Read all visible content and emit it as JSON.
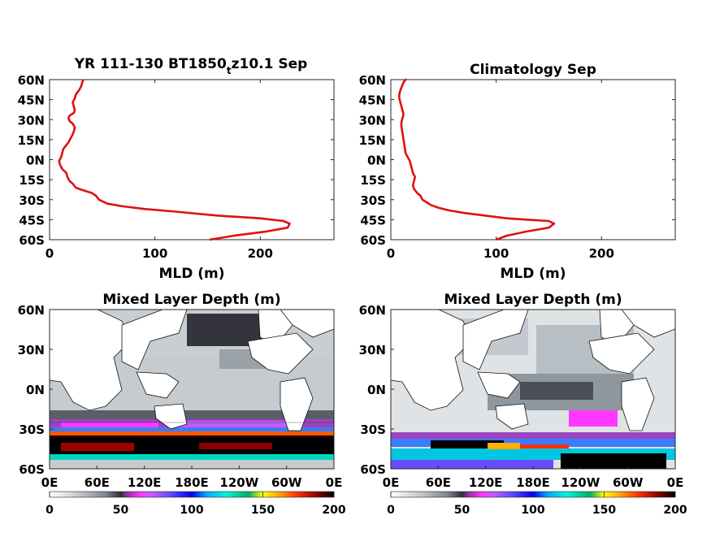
{
  "chart_data": [
    {
      "type": "line",
      "title_prefix": "YR 111-130 BT1850",
      "title_subscript": "t",
      "title_suffix": "z10.1 Sep",
      "xlabel": "MLD (m)",
      "ylabel": "",
      "xlim": [
        0,
        270
      ],
      "ylim": [
        -60,
        60
      ],
      "x_ticks": [
        "0",
        "100",
        "200"
      ],
      "y_ticks": [
        "60N",
        "45N",
        "30N",
        "15N",
        "0N",
        "15S",
        "30S",
        "45S",
        "60S"
      ],
      "line_color": "#e01010",
      "series": [
        {
          "x": [
            152,
            175,
            205,
            226,
            228,
            222,
            200,
            160,
            120,
            90,
            70,
            55,
            47,
            44,
            40,
            36,
            30,
            25,
            22,
            19,
            17,
            16,
            12,
            10,
            9,
            11,
            12,
            13,
            15,
            18,
            20,
            22,
            23,
            24,
            22,
            19,
            18,
            19,
            23,
            24,
            23,
            22,
            24,
            25,
            28,
            30,
            31,
            32
          ],
          "y": [
            -60,
            -57,
            -54,
            -51,
            -48,
            -46,
            -44,
            -42,
            -39,
            -37,
            -35,
            -33,
            -30,
            -27,
            -25,
            -24,
            -22.5,
            -21,
            -18,
            -16,
            -13,
            -10,
            -7,
            -4,
            -1,
            2,
            5,
            8,
            10,
            13,
            16,
            19,
            21,
            24,
            27,
            29,
            31,
            33,
            35,
            37,
            40,
            43,
            46,
            49,
            52,
            55,
            58,
            60
          ]
        }
      ]
    },
    {
      "type": "line",
      "title": "Climatology Sep",
      "xlabel": "MLD (m)",
      "ylabel": "",
      "xlim": [
        0,
        270
      ],
      "ylim": [
        -60,
        60
      ],
      "x_ticks": [
        "0",
        "100",
        "200"
      ],
      "y_ticks": [
        "60N",
        "45N",
        "30N",
        "15N",
        "0N",
        "15S",
        "30S",
        "45S",
        "60S"
      ],
      "line_color": "#e01010",
      "series": [
        {
          "x": [
            100,
            110,
            128,
            150,
            155,
            150,
            130,
            110,
            90,
            70,
            55,
            45,
            38,
            34,
            30,
            28,
            25,
            22,
            21,
            22,
            23,
            21,
            20,
            19,
            18,
            16,
            14,
            13,
            12,
            11,
            10,
            10,
            11,
            12,
            11,
            10,
            9,
            8,
            8,
            9,
            10,
            11,
            12,
            13,
            14,
            15
          ],
          "y": [
            -60,
            -57,
            -54,
            -51,
            -48,
            -46,
            -45,
            -44,
            -42,
            -40,
            -38,
            -36,
            -34,
            -32,
            -30,
            -27,
            -25,
            -22,
            -19,
            -16,
            -13,
            -10,
            -7,
            -4,
            -1,
            2,
            5,
            10,
            15,
            20,
            25,
            28,
            31,
            34,
            37,
            40,
            43,
            46,
            49,
            52,
            54,
            56,
            58,
            59,
            60,
            60
          ]
        }
      ]
    },
    {
      "type": "heatmap",
      "title": "Mixed Layer Depth (m)",
      "x_ticks": [
        "0E",
        "60E",
        "120E",
        "180E",
        "120W",
        "60W",
        "0E"
      ],
      "y_ticks": [
        "60N",
        "30N",
        "0N",
        "30S",
        "60S"
      ],
      "colorbar_ticks": [
        "0",
        "50",
        "100",
        "150",
        "200"
      ],
      "colorbar_range": [
        0,
        200
      ]
    },
    {
      "type": "heatmap",
      "title": "Mixed Layer Depth (m)",
      "x_ticks": [
        "0E",
        "60E",
        "120E",
        "180E",
        "120W",
        "60W",
        "0E"
      ],
      "y_ticks": [
        "60N",
        "30N",
        "0N",
        "30S",
        "60S"
      ],
      "colorbar_ticks": [
        "0",
        "50",
        "100",
        "150",
        "200"
      ],
      "colorbar_range": [
        0,
        200
      ]
    }
  ],
  "colormap": {
    "stops": [
      [
        0,
        "#ffffff"
      ],
      [
        0.05,
        "#e2e6e8"
      ],
      [
        0.12,
        "#b7bfc4"
      ],
      [
        0.2,
        "#7d848c"
      ],
      [
        0.25,
        "#303038"
      ],
      [
        0.27,
        "#8a2f9c"
      ],
      [
        0.32,
        "#ff38ff"
      ],
      [
        0.36,
        "#c25cff"
      ],
      [
        0.42,
        "#6a4cff"
      ],
      [
        0.5,
        "#0000ff"
      ],
      [
        0.55,
        "#00a6ff"
      ],
      [
        0.62,
        "#00f5d8"
      ],
      [
        0.7,
        "#00b060"
      ],
      [
        0.75,
        "#ffff00"
      ],
      [
        0.8,
        "#ffb000"
      ],
      [
        0.87,
        "#ff3000"
      ],
      [
        0.94,
        "#8a0000"
      ],
      [
        1.0,
        "#000000"
      ]
    ]
  }
}
